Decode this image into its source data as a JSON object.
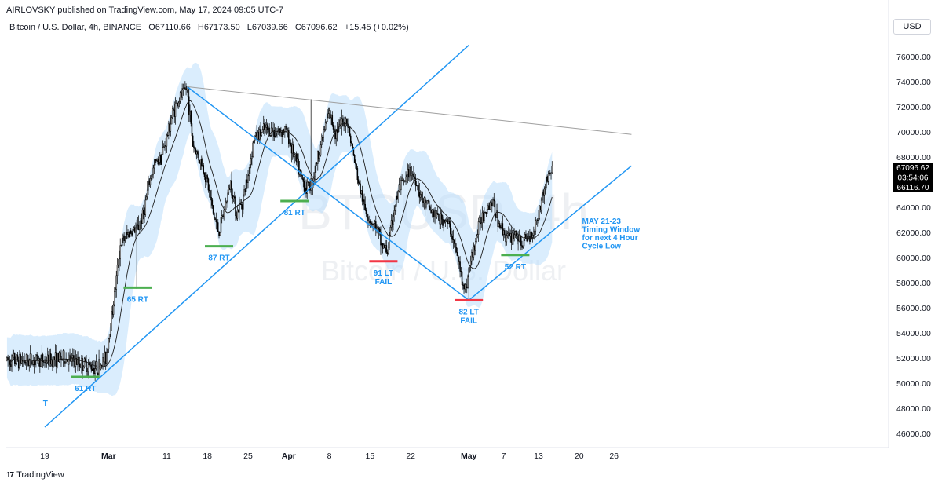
{
  "header": {
    "publisher_line": "AIRLOVSKY published on TradingView.com, May 17, 2024 09:05 UTC-7"
  },
  "symbol_info": {
    "name": "Bitcoin / U.S. Dollar, 4h, BINANCE",
    "open": "O67110.66",
    "high": "H67173.50",
    "low": "L67039.66",
    "close": "C67096.62",
    "change": "+15.45 (+0.02%)"
  },
  "currency_label": "USD",
  "watermark": {
    "ticker": "BTCUSD, 4h",
    "name": "Bitcoin / U.S. Dollar"
  },
  "footer": {
    "brand": "TradingView",
    "logo_glyph": "17"
  },
  "price_badges": {
    "last": "67096.62",
    "countdown": "03:54:06",
    "ma": "66116.70"
  },
  "colors": {
    "trendline": "#2196f3",
    "band": "#bbdefb",
    "candle": "#000000",
    "green_mark": "#4caf50",
    "red_mark": "#f23645",
    "annotation": "#2196f3"
  },
  "chart_data": {
    "type": "candlestick",
    "ylim": [
      45000,
      77500
    ],
    "xlim_days": [
      0,
      101
    ],
    "y_ticks": [
      "76000.00",
      "74000.00",
      "72000.00",
      "70000.00",
      "68000.00",
      "66000.00",
      "64000.00",
      "62000.00",
      "60000.00",
      "58000.00",
      "56000.00",
      "54000.00",
      "52000.00",
      "50000.00",
      "48000.00",
      "46000.00"
    ],
    "x_ticks": [
      {
        "label": "19",
        "day": 0
      },
      {
        "label": "Mar",
        "day": 11
      },
      {
        "label": "11",
        "day": 21
      },
      {
        "label": "18",
        "day": 28
      },
      {
        "label": "25",
        "day": 35
      },
      {
        "label": "Apr",
        "day": 42
      },
      {
        "label": "8",
        "day": 49
      },
      {
        "label": "15",
        "day": 56
      },
      {
        "label": "22",
        "day": 63
      },
      {
        "label": "May",
        "day": 73
      },
      {
        "label": "7",
        "day": 79
      },
      {
        "label": "13",
        "day": 85
      },
      {
        "label": "20",
        "day": 92
      },
      {
        "label": "26",
        "day": 98
      }
    ],
    "price_path": [
      [
        0,
        51800
      ],
      [
        3,
        52000
      ],
      [
        6,
        51600
      ],
      [
        9,
        51200
      ],
      [
        10.5,
        52000
      ],
      [
        12,
        57000
      ],
      [
        13,
        61000
      ],
      [
        14.5,
        62000
      ],
      [
        16,
        62300
      ],
      [
        17,
        63500
      ],
      [
        18,
        66000
      ],
      [
        19,
        67500
      ],
      [
        20,
        68000
      ],
      [
        21,
        69500
      ],
      [
        22,
        71500
      ],
      [
        23,
        72500
      ],
      [
        24.5,
        73500
      ],
      [
        25.5,
        69000
      ],
      [
        27,
        67500
      ],
      [
        28,
        66000
      ],
      [
        29,
        63500
      ],
      [
        30,
        62000
      ],
      [
        31,
        64000
      ],
      [
        32,
        66000
      ],
      [
        33,
        63500
      ],
      [
        34,
        64500
      ],
      [
        35,
        66500
      ],
      [
        36,
        69500
      ],
      [
        38,
        70200
      ],
      [
        40,
        70000
      ],
      [
        41.5,
        70200
      ],
      [
        43,
        68000
      ],
      [
        44,
        66500
      ],
      [
        45,
        65500
      ],
      [
        46,
        66000
      ],
      [
        47,
        68000
      ],
      [
        48,
        70000
      ],
      [
        49,
        71500
      ],
      [
        50,
        70000
      ],
      [
        51,
        70500
      ],
      [
        52,
        71000
      ],
      [
        53,
        68500
      ],
      [
        54,
        66000
      ],
      [
        55,
        64000
      ],
      [
        56,
        63000
      ],
      [
        57,
        62500
      ],
      [
        58,
        61000
      ],
      [
        59,
        60500
      ],
      [
        60,
        63500
      ],
      [
        61,
        65500
      ],
      [
        62,
        66000
      ],
      [
        63,
        67000
      ],
      [
        64,
        66000
      ],
      [
        65,
        64500
      ],
      [
        66,
        64000
      ],
      [
        67,
        63500
      ],
      [
        68,
        63000
      ],
      [
        69,
        63000
      ],
      [
        70,
        62000
      ],
      [
        71,
        60000
      ],
      [
        72,
        58000
      ],
      [
        72.5,
        57500
      ],
      [
        73,
        59000
      ],
      [
        74,
        61000
      ],
      [
        75,
        63000
      ],
      [
        76,
        64000
      ],
      [
        77,
        64500
      ],
      [
        78,
        63000
      ],
      [
        79,
        62000
      ],
      [
        80,
        61500
      ],
      [
        81,
        62000
      ],
      [
        82,
        61000
      ],
      [
        83,
        61500
      ],
      [
        84,
        62000
      ],
      [
        85,
        63500
      ],
      [
        86,
        65500
      ],
      [
        86.6,
        66500
      ],
      [
        87.4,
        67100
      ]
    ],
    "spikes": [
      {
        "day": 15.8,
        "low": 57500
      },
      {
        "day": 45.8,
        "high": 72600
      },
      {
        "day": 73,
        "low": 56500
      }
    ],
    "trendlines": [
      {
        "name": "rising-support-long",
        "from": [
          0,
          46500
        ],
        "to": [
          73,
          76900
        ]
      },
      {
        "name": "falling-line",
        "from": [
          24.5,
          73600
        ],
        "to": [
          73,
          56600
        ]
      },
      {
        "name": "rising-support-short",
        "from": [
          73,
          56600
        ],
        "to": [
          101,
          67300
        ]
      },
      {
        "name": "descending-gray",
        "from": [
          24.5,
          73600
        ],
        "to": [
          101,
          69800
        ]
      }
    ],
    "level_markers": [
      {
        "label": "61 RT",
        "day": 7,
        "price": 50500,
        "color": "green"
      },
      {
        "label": "65 RT",
        "day": 16,
        "price": 57600,
        "color": "green"
      },
      {
        "label": "87 RT",
        "day": 30,
        "price": 60900,
        "color": "green"
      },
      {
        "label": "81 RT",
        "day": 43,
        "price": 64500,
        "color": "green"
      },
      {
        "label": "91 LT",
        "sub": "FAIL",
        "day": 58.3,
        "price": 59700,
        "color": "red"
      },
      {
        "label": "82 LT",
        "sub": "FAIL",
        "day": 73,
        "price": 56600,
        "color": "red"
      },
      {
        "label": "52 RT",
        "day": 81,
        "price": 60200,
        "color": "green"
      }
    ],
    "annotations": [
      {
        "lines": [
          "MAY 21-23",
          "Timing Window",
          "for next 4 Hour",
          "Cycle Low"
        ],
        "day": 92.5,
        "price": 62500
      },
      {
        "lines": [
          "T"
        ],
        "day": -0.3,
        "price": 48000
      }
    ]
  }
}
